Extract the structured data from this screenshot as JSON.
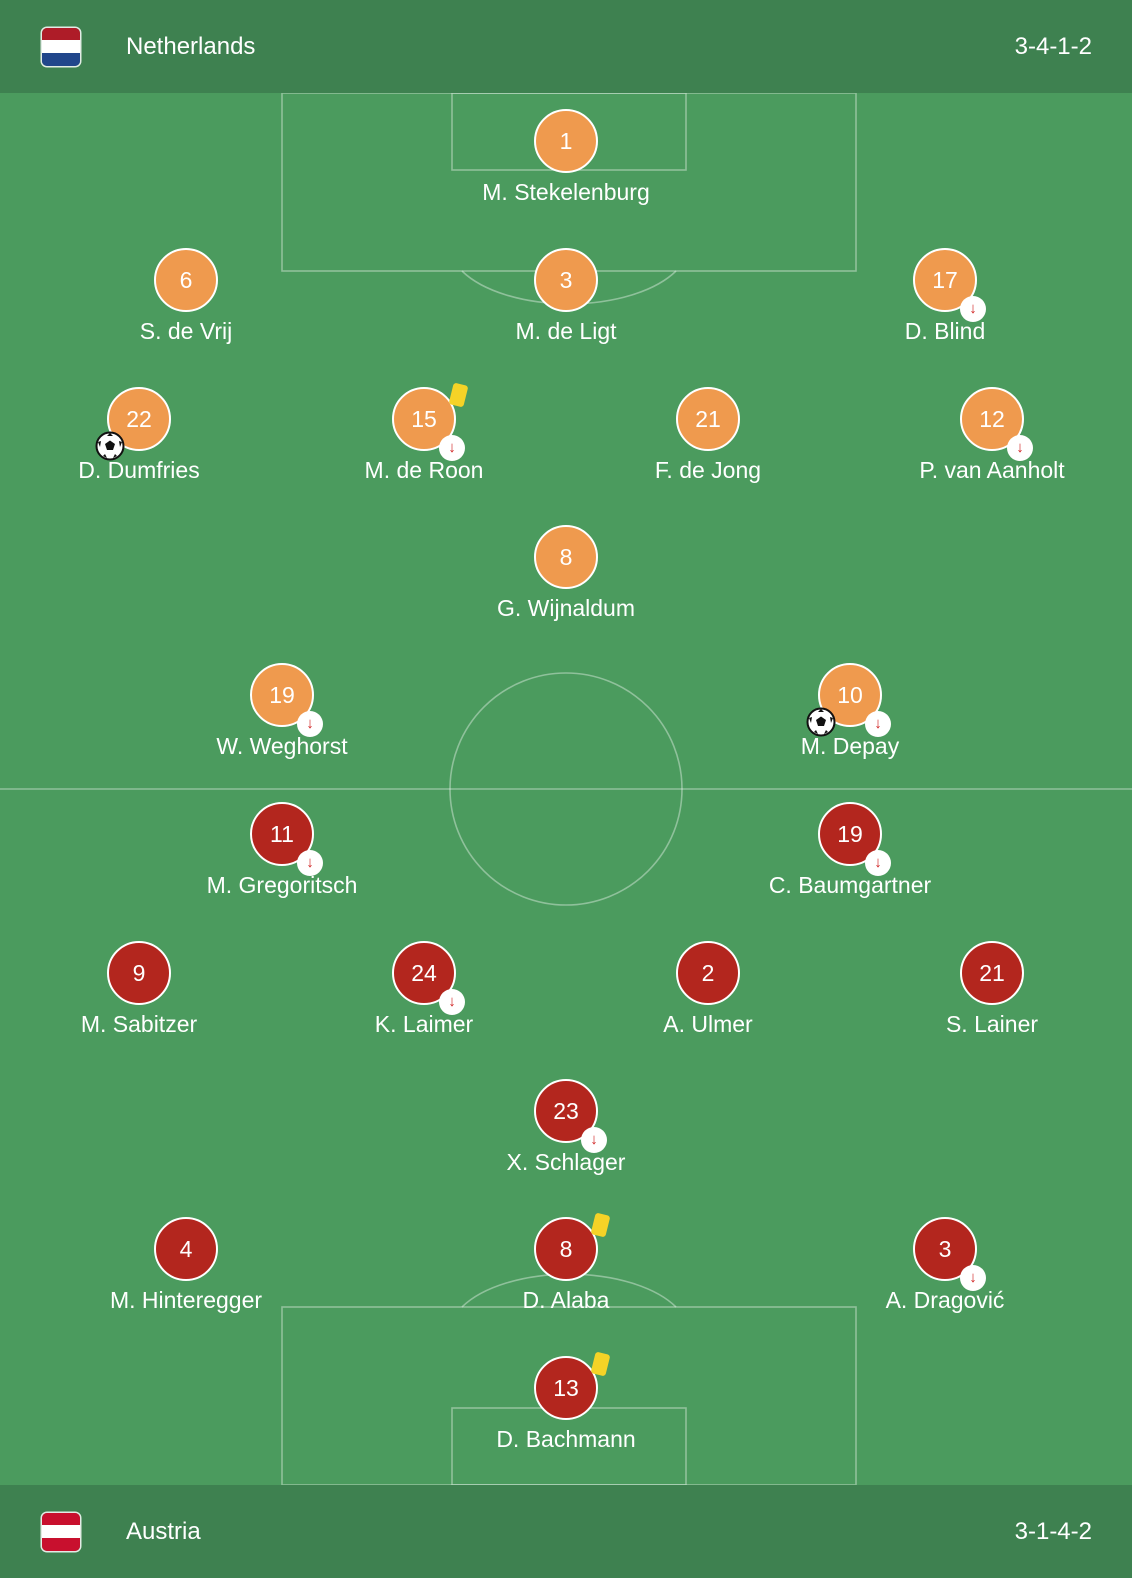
{
  "colors": {
    "pitch": "#4b9b5e",
    "bar": "#3e8150",
    "home_badge": "#ef9a4e",
    "away_badge": "#b3261e",
    "yellow_card": "#f5d327",
    "sub_arrow": "#d02020"
  },
  "home": {
    "name": "Netherlands",
    "formation": "3-4-1-2",
    "flag_icon": "netherlands-flag-icon",
    "players": [
      {
        "number": "1",
        "name": "M. Stekelenburg",
        "sub": false,
        "yellow": false,
        "goal": false
      },
      {
        "number": "6",
        "name": "S. de Vrij",
        "sub": false,
        "yellow": false,
        "goal": false
      },
      {
        "number": "3",
        "name": "M. de Ligt",
        "sub": false,
        "yellow": false,
        "goal": false
      },
      {
        "number": "17",
        "name": "D. Blind",
        "sub": true,
        "yellow": false,
        "goal": false
      },
      {
        "number": "22",
        "name": "D. Dumfries",
        "sub": false,
        "yellow": false,
        "goal": true
      },
      {
        "number": "15",
        "name": "M. de Roon",
        "sub": true,
        "yellow": true,
        "goal": false
      },
      {
        "number": "21",
        "name": "F. de Jong",
        "sub": false,
        "yellow": false,
        "goal": false
      },
      {
        "number": "12",
        "name": "P. van Aanholt",
        "sub": true,
        "yellow": false,
        "goal": false
      },
      {
        "number": "8",
        "name": "G. Wijnaldum",
        "sub": false,
        "yellow": false,
        "goal": false
      },
      {
        "number": "19",
        "name": "W. Weghorst",
        "sub": true,
        "yellow": false,
        "goal": false
      },
      {
        "number": "10",
        "name": "M. Depay",
        "sub": true,
        "yellow": false,
        "goal": true
      }
    ]
  },
  "away": {
    "name": "Austria",
    "formation": "3-1-4-2",
    "flag_icon": "austria-flag-icon",
    "players": [
      {
        "number": "11",
        "name": "M. Gregoritsch",
        "sub": true,
        "yellow": false,
        "goal": false
      },
      {
        "number": "19",
        "name": "C. Baumgartner",
        "sub": true,
        "yellow": false,
        "goal": false
      },
      {
        "number": "9",
        "name": "M. Sabitzer",
        "sub": false,
        "yellow": false,
        "goal": false
      },
      {
        "number": "24",
        "name": "K. Laimer",
        "sub": true,
        "yellow": false,
        "goal": false
      },
      {
        "number": "2",
        "name": "A. Ulmer",
        "sub": false,
        "yellow": false,
        "goal": false
      },
      {
        "number": "21",
        "name": "S. Lainer",
        "sub": false,
        "yellow": false,
        "goal": false
      },
      {
        "number": "23",
        "name": "X. Schlager",
        "sub": true,
        "yellow": false,
        "goal": false
      },
      {
        "number": "4",
        "name": "M. Hinteregger",
        "sub": false,
        "yellow": false,
        "goal": false
      },
      {
        "number": "8",
        "name": "D. Alaba",
        "sub": false,
        "yellow": true,
        "goal": false
      },
      {
        "number": "3",
        "name": "A. Dragović",
        "sub": true,
        "yellow": false,
        "goal": false
      },
      {
        "number": "13",
        "name": "D. Bachmann",
        "sub": false,
        "yellow": true,
        "goal": false
      }
    ]
  }
}
